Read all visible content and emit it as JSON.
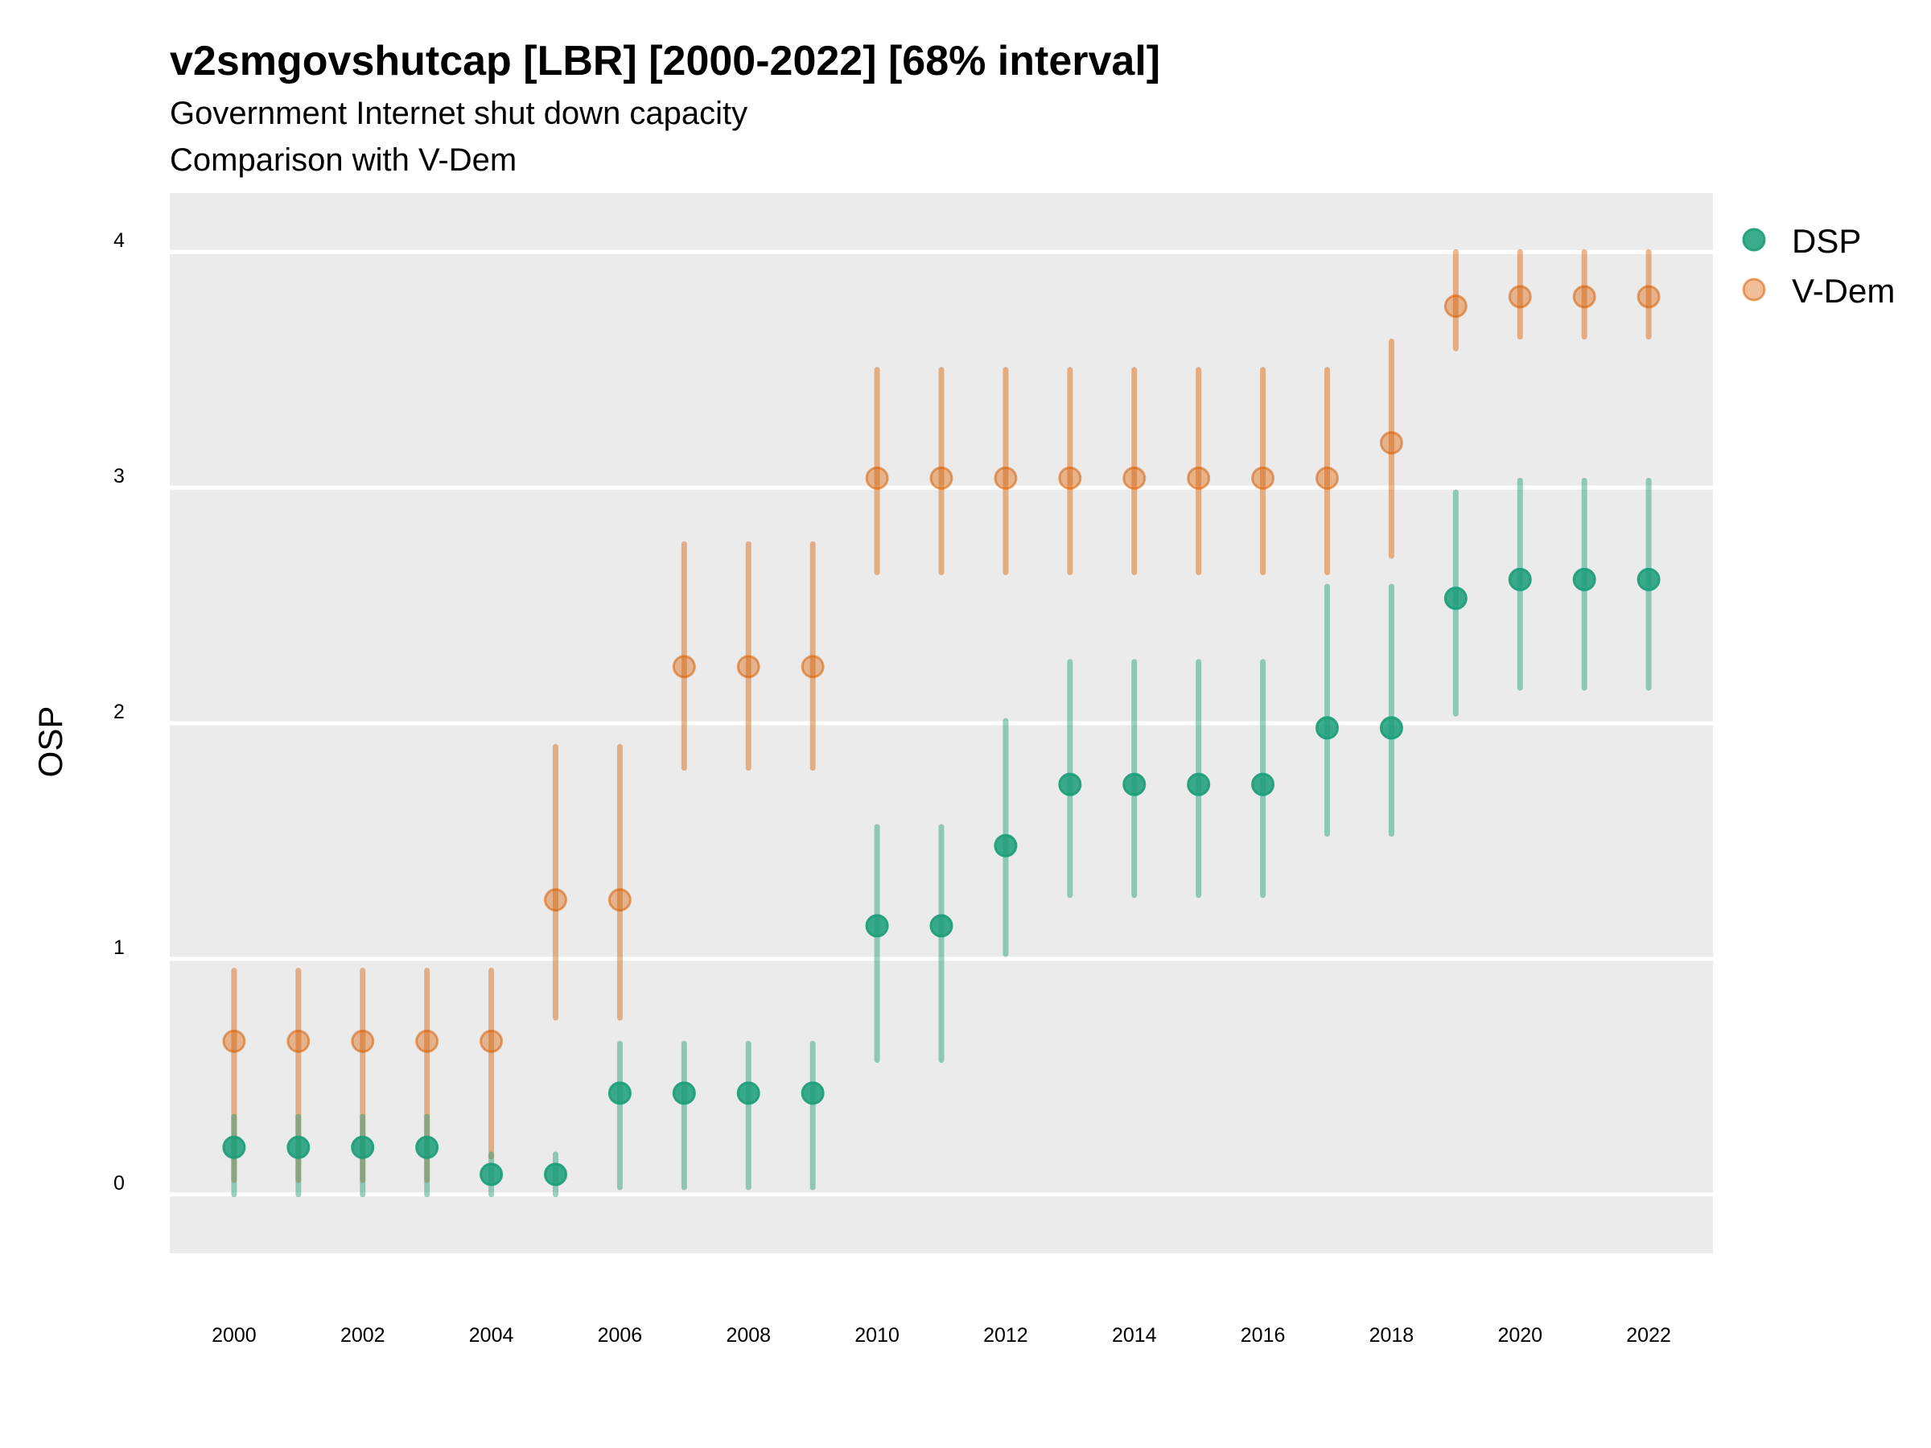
{
  "chart_data": {
    "type": "scatter",
    "subtype": "point-range",
    "title": "v2smgovshutcap [LBR] [2000-2022] [68% interval]",
    "subtitle_lines": [
      "Government Internet shut down capacity",
      "Comparison with V-Dem"
    ],
    "xlabel": "",
    "ylabel": "OSP",
    "xlim": [
      1999,
      2023
    ],
    "ylim": [
      -0.25,
      4.25
    ],
    "x_ticks": [
      2000,
      2002,
      2004,
      2006,
      2008,
      2010,
      2012,
      2014,
      2016,
      2018,
      2020,
      2022
    ],
    "x_tick_labels": [
      "2000",
      "2002",
      "2004",
      "2006",
      "2008",
      "2010",
      "2012",
      "2014",
      "2016",
      "2018",
      "2020",
      "2022"
    ],
    "y_ticks": [
      0,
      1,
      2,
      3,
      4
    ],
    "y_tick_labels": [
      "0",
      "1",
      "2",
      "3",
      "4"
    ],
    "grid": "horizontal-major",
    "legend_position": "right",
    "x": [
      2000,
      2001,
      2002,
      2003,
      2004,
      2005,
      2006,
      2007,
      2008,
      2009,
      2010,
      2011,
      2012,
      2013,
      2014,
      2015,
      2016,
      2017,
      2018,
      2019,
      2020,
      2021,
      2022
    ],
    "series": [
      {
        "name": "DSP",
        "color": "#1b9e77",
        "values": [
          0.2,
          0.2,
          0.2,
          0.2,
          0.085,
          0.085,
          0.43,
          0.43,
          0.43,
          0.43,
          1.14,
          1.14,
          1.48,
          1.74,
          1.74,
          1.74,
          1.74,
          1.98,
          1.98,
          2.53,
          2.61,
          2.61,
          2.61
        ],
        "lower": [
          0.0,
          0.0,
          0.0,
          0.0,
          0.0,
          0.0,
          0.03,
          0.03,
          0.03,
          0.03,
          0.57,
          0.57,
          1.02,
          1.27,
          1.27,
          1.27,
          1.27,
          1.53,
          1.53,
          2.04,
          2.15,
          2.15,
          2.15
        ],
        "upper": [
          0.33,
          0.33,
          0.33,
          0.33,
          0.17,
          0.17,
          0.64,
          0.64,
          0.64,
          0.64,
          1.56,
          1.56,
          2.01,
          2.26,
          2.26,
          2.26,
          2.26,
          2.58,
          2.58,
          2.98,
          3.03,
          3.03,
          3.03
        ]
      },
      {
        "name": "V-Dem",
        "color": "#d95f02",
        "values": [
          0.65,
          0.65,
          0.65,
          0.65,
          0.65,
          1.25,
          1.25,
          2.24,
          2.24,
          2.24,
          3.04,
          3.04,
          3.04,
          3.04,
          3.04,
          3.04,
          3.04,
          3.04,
          3.19,
          3.77,
          3.81,
          3.81,
          3.81
        ],
        "lower": [
          0.06,
          0.06,
          0.06,
          0.06,
          0.16,
          0.75,
          0.75,
          1.81,
          1.81,
          1.81,
          2.64,
          2.64,
          2.64,
          2.64,
          2.64,
          2.64,
          2.64,
          2.64,
          2.71,
          3.59,
          3.64,
          3.64,
          3.64
        ],
        "upper": [
          0.95,
          0.95,
          0.95,
          0.95,
          0.95,
          1.9,
          1.9,
          2.76,
          2.76,
          2.76,
          3.5,
          3.5,
          3.5,
          3.5,
          3.5,
          3.5,
          3.5,
          3.5,
          3.62,
          4.0,
          4.0,
          4.0,
          4.0
        ]
      }
    ]
  },
  "legend": {
    "items": [
      {
        "label": "DSP",
        "color": "#1b9e77"
      },
      {
        "label": "V-Dem",
        "color": "#d95f02"
      }
    ]
  }
}
